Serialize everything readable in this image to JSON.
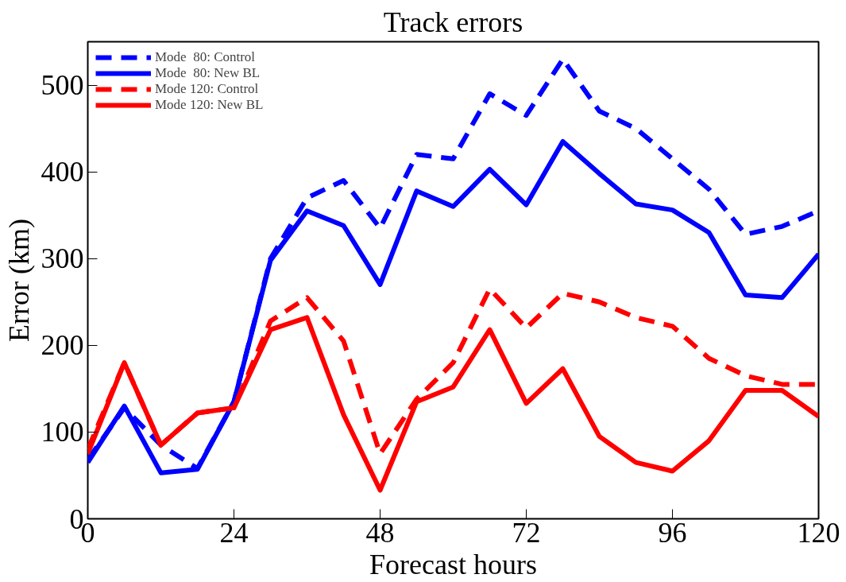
{
  "chart_data": {
    "type": "line",
    "title": "Track errors",
    "xlabel": "Forecast hours",
    "ylabel": "Error (km)",
    "x": [
      0,
      6,
      12,
      18,
      24,
      30,
      36,
      42,
      48,
      54,
      60,
      66,
      72,
      78,
      84,
      90,
      96,
      102,
      108,
      114,
      120
    ],
    "xlim": [
      0,
      120
    ],
    "xticks": [
      0,
      24,
      48,
      72,
      96,
      120
    ],
    "ylim": [
      0,
      550
    ],
    "yticks": [
      0,
      100,
      200,
      300,
      400,
      500
    ],
    "grid": false,
    "legend": "top left",
    "marker": "none",
    "series": [
      {
        "name": "Mode  80: Control",
        "color": "#0000ff",
        "line_style": "dashed",
        "values": [
          68,
          128,
          85,
          58,
          135,
          300,
          370,
          390,
          335,
          420,
          415,
          490,
          465,
          530,
          470,
          450,
          415,
          380,
          328,
          337,
          355
        ]
      },
      {
        "name": "Mode  80: New BL",
        "color": "#0000ff",
        "line_style": "solid",
        "values": [
          65,
          130,
          53,
          57,
          135,
          298,
          355,
          338,
          270,
          378,
          360,
          403,
          362,
          435,
          398,
          363,
          356,
          330,
          258,
          255,
          305
        ]
      },
      {
        "name": "Mode 120: Control",
        "color": "#ff0000",
        "line_style": "dashed",
        "values": [
          80,
          180,
          85,
          122,
          128,
          228,
          255,
          205,
          75,
          138,
          180,
          265,
          220,
          260,
          250,
          232,
          222,
          185,
          165,
          155,
          155
        ]
      },
      {
        "name": "Mode 120: New BL",
        "color": "#ff0000",
        "line_style": "solid",
        "values": [
          75,
          180,
          85,
          122,
          128,
          218,
          232,
          120,
          33,
          135,
          152,
          218,
          133,
          173,
          95,
          65,
          55,
          90,
          148,
          148,
          118
        ]
      }
    ]
  }
}
